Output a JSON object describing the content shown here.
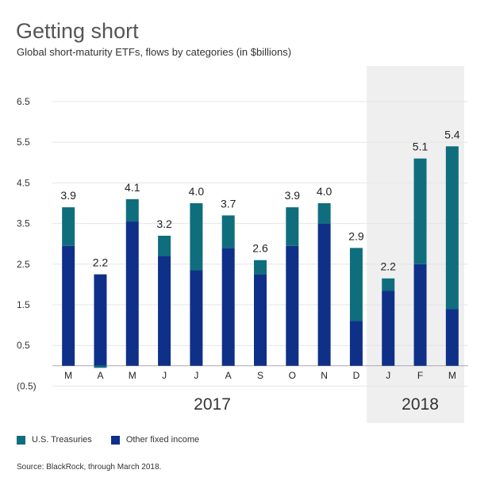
{
  "title": "Getting short",
  "subtitle": "Global short-maturity ETFs, flows by categories (in $billions)",
  "legend": {
    "treasuries": "U.S. Treasuries",
    "other": "Other fixed income"
  },
  "source": "Source: BlackRock, through March 2018.",
  "colors": {
    "treasuries": "#0e6e7e",
    "other": "#0f3088",
    "highlight": "#efefef",
    "grid": "#e6e6e6"
  },
  "chart_data": {
    "type": "bar",
    "stacked": true,
    "categories": [
      "M",
      "A",
      "M",
      "J",
      "J",
      "A",
      "S",
      "O",
      "N",
      "D",
      "J",
      "F",
      "M"
    ],
    "year_labels": [
      {
        "label": "2017",
        "from": 0,
        "to": 9
      },
      {
        "label": "2018",
        "from": 10,
        "to": 12,
        "highlight": true
      }
    ],
    "y_ticks": [
      "6.5",
      "5.5",
      "4.5",
      "3.5",
      "2.5",
      "1.5",
      "0.5",
      "(0.5)"
    ],
    "ylim": [
      -0.5,
      7.0
    ],
    "series": [
      {
        "name": "Other fixed income",
        "values": [
          2.95,
          2.25,
          3.55,
          2.7,
          2.35,
          2.9,
          2.25,
          2.95,
          3.5,
          1.1,
          1.85,
          2.5,
          1.4
        ]
      },
      {
        "name": "U.S. Treasuries",
        "values": [
          0.95,
          -0.05,
          0.55,
          0.5,
          1.65,
          0.8,
          0.35,
          0.95,
          0.5,
          1.8,
          0.3,
          2.6,
          4.0
        ]
      }
    ],
    "totals": [
      "3.9",
      "2.2",
      "4.1",
      "3.2",
      "4.0",
      "3.7",
      "2.6",
      "3.9",
      "4.0",
      "2.9",
      "2.2",
      "5.1",
      "5.4"
    ]
  }
}
